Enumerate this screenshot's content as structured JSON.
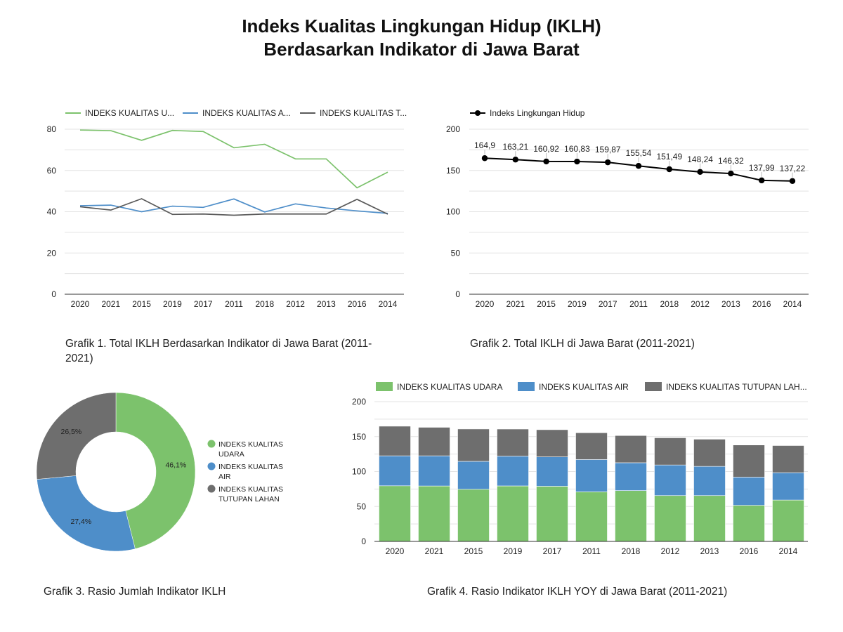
{
  "page": {
    "title_line1": "Indeks Kualitas Lingkungan Hidup (IKLH)",
    "title_line2": "Berdasarkan Indikator di Jawa Barat"
  },
  "captions": {
    "c1_line1": "Grafik 1. Total IKLH Berdasarkan Indikator di Jawa Barat (2011-",
    "c1_line2": "2021)",
    "c2": "Grafik 2. Total IKLH di Jawa Barat (2011-2021)",
    "c3": "Grafik 3. Rasio Jumlah Indikator IKLH",
    "c4": "Grafik 4. Rasio Indikator IKLH YOY di Jawa Barat (2011-2021)"
  },
  "chart_data": [
    {
      "type": "line",
      "categories": [
        "2020",
        "2021",
        "2015",
        "2019",
        "2017",
        "2011",
        "2018",
        "2012",
        "2013",
        "2016",
        "2014"
      ],
      "ylim": [
        0,
        80
      ],
      "yticks": [
        0,
        20,
        40,
        60,
        80
      ],
      "grid": true,
      "legend_position": "top",
      "series": [
        {
          "name": "INDEKS KUALITAS U...",
          "color": "#7cc26c",
          "values": [
            79.6,
            79.3,
            74.6,
            79.4,
            78.9,
            71.0,
            72.7,
            65.6,
            65.6,
            51.6,
            59.2
          ]
        },
        {
          "name": "INDEKS KUALITAS A...",
          "color": "#4e8ec9",
          "values": [
            42.9,
            43.2,
            40.0,
            42.7,
            42.1,
            46.2,
            39.9,
            43.8,
            41.8,
            40.4,
            39.2
          ]
        },
        {
          "name": "INDEKS KUALITAS T...",
          "color": "#5a5a5a",
          "values": [
            42.4,
            40.8,
            46.3,
            38.7,
            38.9,
            38.3,
            38.9,
            38.9,
            38.9,
            46.0,
            38.8
          ]
        }
      ]
    },
    {
      "type": "line",
      "categories": [
        "2020",
        "2021",
        "2015",
        "2019",
        "2017",
        "2011",
        "2018",
        "2012",
        "2013",
        "2016",
        "2014"
      ],
      "ylim": [
        0,
        200
      ],
      "yticks": [
        0,
        50,
        100,
        150,
        200
      ],
      "grid": true,
      "legend_position": "top-left",
      "series": [
        {
          "name": "Indeks Lingkungan Hidup",
          "color": "#000000",
          "values": [
            164.9,
            163.21,
            160.92,
            160.83,
            159.87,
            155.54,
            151.49,
            148.24,
            146.32,
            137.99,
            137.22
          ],
          "labels": [
            "164,9",
            "163,21",
            "160,92",
            "160,83",
            "159,87",
            "155,54",
            "151,49",
            "148,24",
            "146,32",
            "137,99",
            "137,22"
          ]
        }
      ]
    },
    {
      "type": "pie",
      "legend_position": "right",
      "slices": [
        {
          "name_line1": "INDEKS KUALITAS",
          "name_line2": "UDARA",
          "value": 46.1,
          "label": "46,1%",
          "color": "#7cc26c"
        },
        {
          "name_line1": "INDEKS KUALITAS",
          "name_line2": "AIR",
          "value": 27.4,
          "label": "27,4%",
          "color": "#4e8ec9"
        },
        {
          "name_line1": "INDEKS KUALITAS",
          "name_line2": "TUTUPAN LAHAN",
          "value": 26.5,
          "label": "26,5%",
          "color": "#6e6e6e"
        }
      ]
    },
    {
      "type": "bar",
      "stacked": true,
      "categories": [
        "2020",
        "2021",
        "2015",
        "2019",
        "2017",
        "2011",
        "2018",
        "2012",
        "2013",
        "2016",
        "2014"
      ],
      "ylim": [
        0,
        200
      ],
      "yticks": [
        0,
        50,
        100,
        150,
        200
      ],
      "grid": true,
      "legend_position": "top",
      "series": [
        {
          "name": "INDEKS KUALITAS UDARA",
          "color": "#7cc26c",
          "values": [
            79.6,
            79.3,
            74.6,
            79.4,
            78.9,
            71.0,
            72.7,
            65.6,
            65.6,
            51.6,
            59.2
          ]
        },
        {
          "name": "INDEKS KUALITAS AIR",
          "color": "#4e8ec9",
          "values": [
            42.9,
            43.2,
            40.0,
            42.7,
            42.1,
            46.2,
            39.9,
            43.8,
            41.8,
            40.4,
            39.2
          ]
        },
        {
          "name": "INDEKS KUALITAS TUTUPAN LAH...",
          "color": "#6e6e6e",
          "values": [
            42.4,
            40.8,
            46.3,
            38.7,
            38.9,
            38.3,
            38.9,
            38.9,
            38.9,
            46.0,
            38.8
          ]
        }
      ]
    }
  ]
}
